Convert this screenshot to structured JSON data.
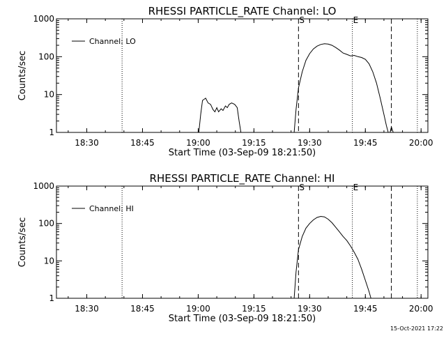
{
  "chart_data": [
    {
      "type": "line",
      "title": "RHESSI PARTICLE_RATE Channel: LO",
      "xlabel": "Start Time (03-Sep-09 18:21:50)",
      "ylabel": "Counts/sec",
      "x_unit": "time of day (HH:MM)",
      "xlim": [
        "18:21:50",
        "20:01:50"
      ],
      "ylim": [
        1,
        1000
      ],
      "y_scale": "log",
      "x_ticks": [
        "18:30",
        "18:45",
        "19:00",
        "19:15",
        "19:30",
        "19:45",
        "20:00"
      ],
      "y_ticks": [
        "1",
        "10",
        "100",
        "1000"
      ],
      "legend": {
        "label": "Channel: LO",
        "placement": "top-left"
      },
      "markers": [
        {
          "time": "18:39:30",
          "style": "dotted",
          "label": ""
        },
        {
          "time": "19:27:00",
          "style": "dashed",
          "label": "S"
        },
        {
          "time": "19:41:30",
          "style": "dotted",
          "label": "E"
        },
        {
          "time": "19:52:00",
          "style": "dashed",
          "label": ""
        },
        {
          "time": "19:59:00",
          "style": "dotted",
          "label": ""
        }
      ],
      "series": [
        {
          "name": "Channel: LO",
          "segments": [
            [
              [
                "19:00:10",
                1.0
              ],
              [
                "19:00:40",
                3.0
              ],
              [
                "19:01:10",
                7.0
              ],
              [
                "19:02:00",
                8.0
              ],
              [
                "19:02:40",
                6.0
              ],
              [
                "19:03:20",
                5.5
              ],
              [
                "19:04:00",
                4.0
              ],
              [
                "19:04:30",
                3.5
              ],
              [
                "19:05:00",
                4.5
              ],
              [
                "19:05:30",
                3.5
              ],
              [
                "19:06:10",
                4.2
              ],
              [
                "19:06:40",
                3.8
              ],
              [
                "19:07:20",
                5.0
              ],
              [
                "19:07:50",
                4.5
              ],
              [
                "19:08:20",
                5.5
              ],
              [
                "19:09:00",
                6.0
              ],
              [
                "19:09:50",
                5.5
              ],
              [
                "19:10:30",
                4.5
              ],
              [
                "19:11:00",
                2.0
              ],
              [
                "19:11:30",
                1.0
              ]
            ],
            [
              [
                "19:25:50",
                1.0
              ],
              [
                "19:26:20",
                4.0
              ],
              [
                "19:27:00",
                15.0
              ],
              [
                "19:28:00",
                40.0
              ],
              [
                "19:29:00",
                80.0
              ],
              [
                "19:30:00",
                120.0
              ],
              [
                "19:31:00",
                160.0
              ],
              [
                "19:32:00",
                190.0
              ],
              [
                "19:33:00",
                210.0
              ],
              [
                "19:34:00",
                220.0
              ],
              [
                "19:35:00",
                215.0
              ],
              [
                "19:36:00",
                200.0
              ],
              [
                "19:37:00",
                175.0
              ],
              [
                "19:38:00",
                150.0
              ],
              [
                "19:39:00",
                125.0
              ],
              [
                "19:40:00",
                115.0
              ],
              [
                "19:41:00",
                105.0
              ],
              [
                "19:42:00",
                108.0
              ],
              [
                "19:43:00",
                100.0
              ],
              [
                "19:44:00",
                95.0
              ],
              [
                "19:45:00",
                85.0
              ],
              [
                "19:46:00",
                65.0
              ],
              [
                "19:47:00",
                40.0
              ],
              [
                "19:48:00",
                20.0
              ],
              [
                "19:49:00",
                8.0
              ],
              [
                "19:50:00",
                3.0
              ],
              [
                "19:50:40",
                1.5
              ],
              [
                "19:51:10",
                1.0
              ]
            ],
            [
              [
                "19:51:40",
                1.0
              ],
              [
                "19:52:00",
                1.4
              ],
              [
                "19:52:30",
                1.0
              ]
            ]
          ]
        }
      ]
    },
    {
      "type": "line",
      "title": "RHESSI PARTICLE_RATE Channel: HI",
      "xlabel": "Start Time (03-Sep-09 18:21:50)",
      "ylabel": "Counts/sec",
      "x_unit": "time of day (HH:MM)",
      "xlim": [
        "18:21:50",
        "20:01:50"
      ],
      "ylim": [
        1,
        1000
      ],
      "y_scale": "log",
      "x_ticks": [
        "18:30",
        "18:45",
        "19:00",
        "19:15",
        "19:30",
        "19:45",
        "20:00"
      ],
      "y_ticks": [
        "1",
        "10",
        "100",
        "1000"
      ],
      "legend": {
        "label": "Channel: HI",
        "placement": "top-left"
      },
      "markers": [
        {
          "time": "18:39:30",
          "style": "dotted",
          "label": ""
        },
        {
          "time": "19:27:00",
          "style": "dashed",
          "label": "S"
        },
        {
          "time": "19:41:30",
          "style": "dotted",
          "label": "E"
        },
        {
          "time": "19:52:00",
          "style": "dashed",
          "label": ""
        },
        {
          "time": "19:59:00",
          "style": "dotted",
          "label": ""
        }
      ],
      "series": [
        {
          "name": "Channel: HI",
          "segments": [
            [
              [
                "19:25:50",
                1.0
              ],
              [
                "19:26:20",
                5.0
              ],
              [
                "19:27:00",
                20.0
              ],
              [
                "19:28:00",
                45.0
              ],
              [
                "19:29:00",
                75.0
              ],
              [
                "19:30:00",
                100.0
              ],
              [
                "19:31:00",
                125.0
              ],
              [
                "19:32:00",
                145.0
              ],
              [
                "19:33:00",
                155.0
              ],
              [
                "19:34:00",
                150.0
              ],
              [
                "19:35:00",
                130.0
              ],
              [
                "19:36:00",
                105.0
              ],
              [
                "19:37:00",
                80.0
              ],
              [
                "19:38:00",
                60.0
              ],
              [
                "19:39:00",
                45.0
              ],
              [
                "19:40:00",
                35.0
              ],
              [
                "19:41:00",
                25.0
              ],
              [
                "19:42:00",
                17.0
              ],
              [
                "19:43:00",
                11.0
              ],
              [
                "19:44:00",
                6.0
              ],
              [
                "19:45:00",
                3.0
              ],
              [
                "19:46:00",
                1.5
              ],
              [
                "19:46:30",
                1.0
              ]
            ]
          ]
        }
      ]
    }
  ],
  "footer": {
    "timestamp": "15-Oct-2021 17:22"
  }
}
